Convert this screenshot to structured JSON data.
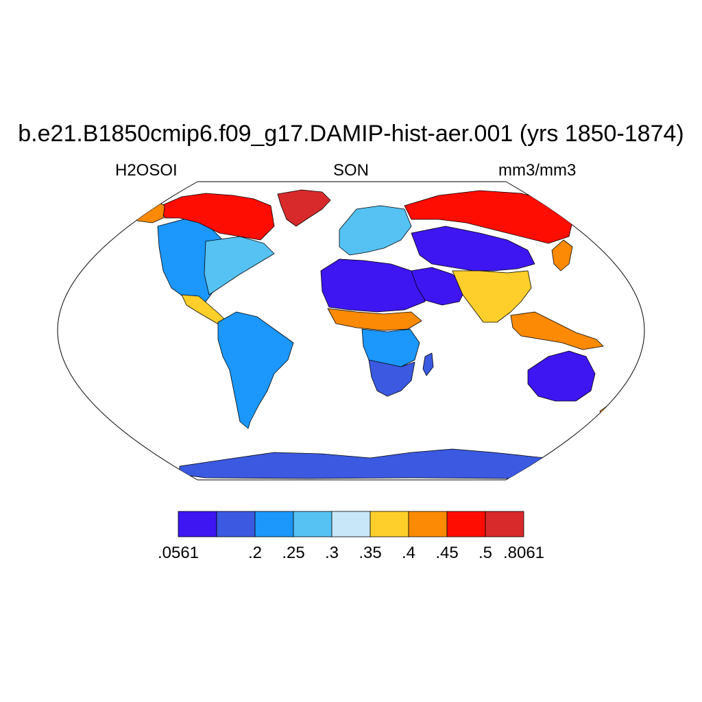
{
  "title": "b.e21.B1850cmip6.f09_g17.DAMIP-hist-aer.001 (yrs 1850-1874)",
  "subtitle": {
    "left": "H2OSOI",
    "center": "SON",
    "right": "mm3/mm3"
  },
  "colorbar": {
    "colors": [
      "#3e16f1",
      "#3b5ae1",
      "#1c97fb",
      "#55c2f3",
      "#c8e7f8",
      "#fecf2a",
      "#fd8a05",
      "#fe0d03",
      "#d82a2b"
    ],
    "labels": [
      ".0561",
      "",
      ".2",
      ".25",
      ".3",
      ".35",
      ".4",
      ".45",
      ".5",
      ".8061"
    ]
  },
  "map": {
    "projection": "Robinson",
    "ocean_color": "#ffffff",
    "coastline_color": "#000000",
    "regions": [
      {
        "name": "greenland",
        "class": 9
      },
      {
        "name": "canada-arctic",
        "class": 8
      },
      {
        "name": "alaska",
        "class": 7
      },
      {
        "name": "north-america-west",
        "class": 3
      },
      {
        "name": "north-america-east",
        "class": 4
      },
      {
        "name": "central-america",
        "class": 6
      },
      {
        "name": "south-america",
        "class": 3
      },
      {
        "name": "sahara",
        "class": 1
      },
      {
        "name": "sahel",
        "class": 7
      },
      {
        "name": "central-africa",
        "class": 3
      },
      {
        "name": "southern-africa",
        "class": 2
      },
      {
        "name": "europe",
        "class": 4
      },
      {
        "name": "siberia",
        "class": 8
      },
      {
        "name": "central-asia",
        "class": 1
      },
      {
        "name": "south-asia",
        "class": 6
      },
      {
        "name": "southeast-asia",
        "class": 7
      },
      {
        "name": "australia",
        "class": 1
      },
      {
        "name": "antarctica",
        "class": 2
      }
    ]
  }
}
